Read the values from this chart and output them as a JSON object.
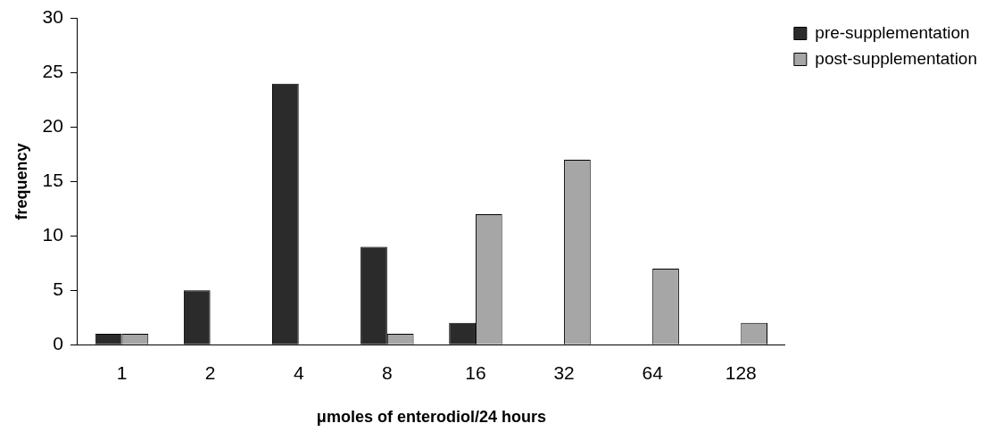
{
  "chart_data": {
    "type": "bar",
    "xlabel": "μmoles of enterodiol/24 hours",
    "ylabel": "frequency",
    "categories": [
      "1",
      "2",
      "4",
      "8",
      "16",
      "32",
      "64",
      "128"
    ],
    "series": [
      {
        "name": "pre-supplementation",
        "color": "#2b2b2b",
        "values": [
          1,
          5,
          24,
          9,
          2,
          0,
          0,
          0
        ]
      },
      {
        "name": "post-supplementation",
        "color": "#a6a6a6",
        "values": [
          1,
          0,
          0,
          1,
          12,
          17,
          7,
          2
        ]
      }
    ],
    "ylim": [
      0,
      30
    ],
    "yticks": [
      0,
      5,
      10,
      15,
      20,
      25,
      30
    ],
    "grid": false,
    "legend": "top right"
  }
}
